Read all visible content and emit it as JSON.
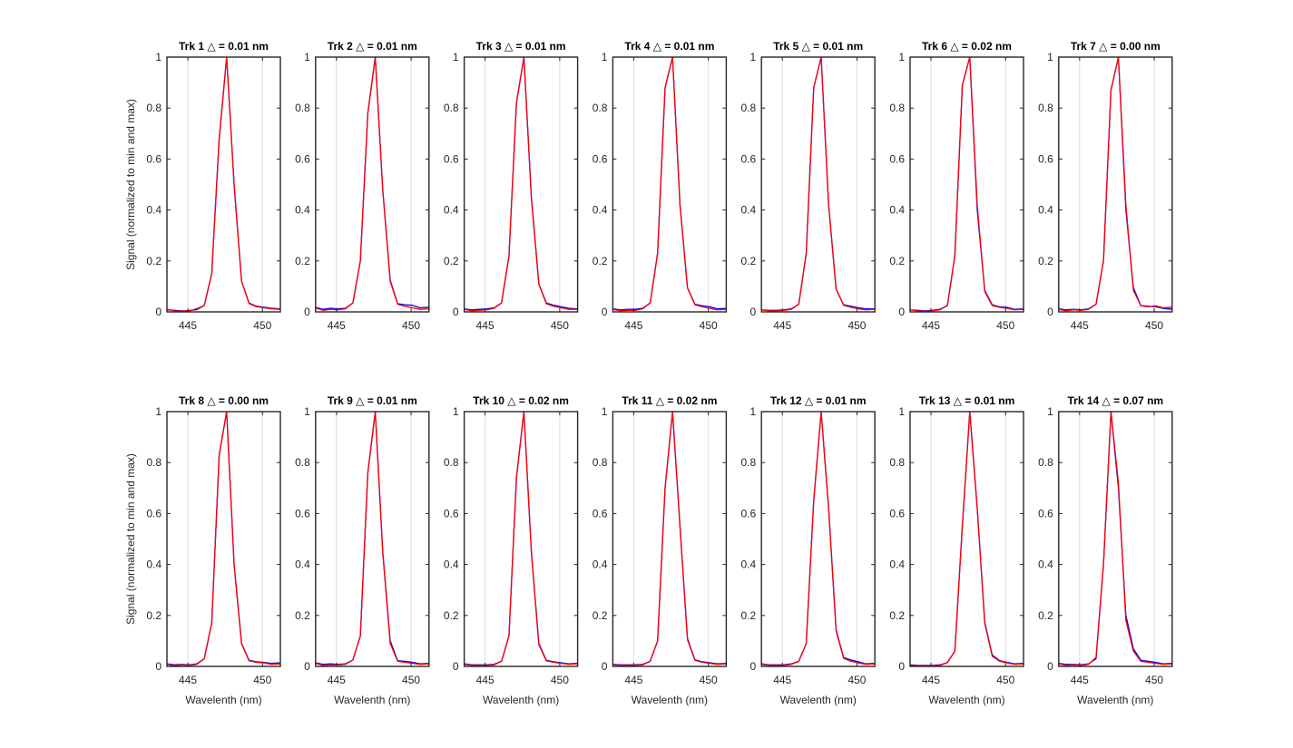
{
  "figure": {
    "ylabel": "Signal (normalized to min and max)",
    "xlabel": "Wavelenth (nm)"
  },
  "chart_data": {
    "type": "line",
    "xlim": [
      443.6,
      451.2
    ],
    "ylim": [
      0,
      1
    ],
    "xticks": [
      445,
      450
    ],
    "yticks": [
      0,
      0.2,
      0.4,
      0.6,
      0.8,
      1
    ],
    "ytick_labels": [
      "0",
      "0.2",
      "0.4",
      "0.6",
      "0.8",
      "1"
    ],
    "grid": true,
    "series_colors": [
      "#0000ff",
      "#ff0000"
    ],
    "x": [
      443.6,
      444.1,
      444.6,
      445.1,
      445.6,
      446.1,
      446.6,
      447.1,
      447.6,
      448.1,
      448.6,
      449.1,
      449.6,
      450.1,
      450.6,
      451.2
    ],
    "panels": [
      {
        "title": "Trk 1 △ = 0.01 nm",
        "ylabel": "Signal (normalized to min and max)",
        "xlabel": "",
        "series": [
          {
            "values": [
              0.008,
              0.006,
              0.004,
              0.004,
              0.012,
              0.025,
              0.15,
              0.68,
              1.0,
              0.5,
              0.12,
              0.035,
              0.022,
              0.018,
              0.014,
              0.012
            ]
          },
          {
            "values": [
              0.01,
              0.004,
              0.002,
              0.006,
              0.008,
              0.025,
              0.15,
              0.68,
              1.0,
              0.5,
              0.12,
              0.033,
              0.02,
              0.016,
              0.012,
              0.01
            ]
          }
        ]
      },
      {
        "title": "Trk 2 △ = 0.01 nm",
        "ylabel": "",
        "xlabel": "",
        "series": [
          {
            "values": [
              0.018,
              0.01,
              0.014,
              0.012,
              0.014,
              0.035,
              0.2,
              0.78,
              1.0,
              0.48,
              0.125,
              0.032,
              0.028,
              0.026,
              0.016,
              0.018
            ]
          },
          {
            "values": [
              0.015,
              0.006,
              0.01,
              0.008,
              0.012,
              0.035,
              0.2,
              0.78,
              1.0,
              0.48,
              0.12,
              0.03,
              0.022,
              0.016,
              0.01,
              0.012
            ]
          }
        ]
      },
      {
        "title": "Trk 3 △ = 0.01 nm",
        "ylabel": "",
        "xlabel": "",
        "series": [
          {
            "values": [
              0.012,
              0.008,
              0.01,
              0.012,
              0.016,
              0.035,
              0.22,
              0.82,
              1.0,
              0.45,
              0.11,
              0.035,
              0.026,
              0.02,
              0.014,
              0.012
            ]
          },
          {
            "values": [
              0.01,
              0.004,
              0.006,
              0.008,
              0.014,
              0.035,
              0.22,
              0.82,
              1.0,
              0.45,
              0.11,
              0.032,
              0.022,
              0.016,
              0.01,
              0.01
            ]
          }
        ]
      },
      {
        "title": "Trk 4 △ = 0.01 nm",
        "ylabel": "",
        "xlabel": "",
        "series": [
          {
            "values": [
              0.012,
              0.008,
              0.01,
              0.01,
              0.014,
              0.035,
              0.23,
              0.88,
              1.0,
              0.42,
              0.095,
              0.03,
              0.024,
              0.02,
              0.012,
              0.014
            ]
          },
          {
            "values": [
              0.01,
              0.004,
              0.006,
              0.006,
              0.012,
              0.035,
              0.23,
              0.88,
              1.0,
              0.42,
              0.095,
              0.028,
              0.02,
              0.014,
              0.008,
              0.01
            ]
          }
        ]
      },
      {
        "title": "Trk 5 △ = 0.01 nm",
        "ylabel": "",
        "xlabel": "",
        "series": [
          {
            "values": [
              0.008,
              0.006,
              0.006,
              0.008,
              0.012,
              0.03,
              0.23,
              0.88,
              1.0,
              0.42,
              0.09,
              0.028,
              0.022,
              0.016,
              0.012,
              0.012
            ]
          },
          {
            "values": [
              0.008,
              0.004,
              0.004,
              0.006,
              0.01,
              0.03,
              0.23,
              0.88,
              1.0,
              0.42,
              0.09,
              0.026,
              0.018,
              0.012,
              0.008,
              0.01
            ]
          }
        ]
      },
      {
        "title": "Trk 6 △ = 0.02 nm",
        "ylabel": "",
        "xlabel": "",
        "series": [
          {
            "values": [
              0.008,
              0.006,
              0.004,
              0.006,
              0.01,
              0.025,
              0.22,
              0.89,
              1.0,
              0.4,
              0.085,
              0.028,
              0.02,
              0.018,
              0.01,
              0.012
            ]
          },
          {
            "values": [
              0.008,
              0.004,
              0.002,
              0.004,
              0.008,
              0.025,
              0.22,
              0.89,
              1.0,
              0.42,
              0.08,
              0.025,
              0.018,
              0.014,
              0.008,
              0.01
            ]
          }
        ]
      },
      {
        "title": "Trk 7 △ = 0.00 nm",
        "ylabel": "",
        "xlabel": "",
        "series": [
          {
            "values": [
              0.012,
              0.008,
              0.01,
              0.008,
              0.012,
              0.03,
              0.2,
              0.87,
              1.0,
              0.4,
              0.095,
              0.025,
              0.022,
              0.02,
              0.014,
              0.01
            ]
          },
          {
            "values": [
              0.01,
              0.004,
              0.008,
              0.006,
              0.01,
              0.03,
              0.2,
              0.87,
              1.0,
              0.42,
              0.085,
              0.024,
              0.02,
              0.024,
              0.016,
              0.018
            ]
          }
        ]
      },
      {
        "title": "Trk 8 △ = 0.00 nm",
        "ylabel": "Signal (normalized to min and max)",
        "xlabel": "Wavelenth (nm)",
        "series": [
          {
            "values": [
              0.01,
              0.006,
              0.008,
              0.006,
              0.01,
              0.03,
              0.17,
              0.83,
              1.0,
              0.4,
              0.09,
              0.024,
              0.018,
              0.016,
              0.012,
              0.014
            ]
          },
          {
            "values": [
              0.008,
              0.002,
              0.006,
              0.004,
              0.008,
              0.03,
              0.17,
              0.83,
              1.0,
              0.4,
              0.088,
              0.022,
              0.016,
              0.014,
              0.008,
              0.01
            ]
          }
        ]
      },
      {
        "title": "Trk 9 △ = 0.01 nm",
        "ylabel": "",
        "xlabel": "Wavelenth (nm)",
        "series": [
          {
            "values": [
              0.014,
              0.008,
              0.01,
              0.008,
              0.01,
              0.025,
              0.12,
              0.76,
              1.0,
              0.45,
              0.1,
              0.022,
              0.02,
              0.016,
              0.01,
              0.012
            ]
          },
          {
            "values": [
              0.012,
              0.004,
              0.006,
              0.006,
              0.008,
              0.025,
              0.12,
              0.76,
              1.0,
              0.45,
              0.09,
              0.02,
              0.016,
              0.012,
              0.008,
              0.01
            ]
          }
        ]
      },
      {
        "title": "Trk 10 △ = 0.02 nm",
        "ylabel": "",
        "xlabel": "Wavelenth (nm)",
        "series": [
          {
            "values": [
              0.01,
              0.006,
              0.006,
              0.006,
              0.008,
              0.02,
              0.12,
              0.74,
              1.0,
              0.45,
              0.09,
              0.024,
              0.018,
              0.014,
              0.01,
              0.012
            ]
          },
          {
            "values": [
              0.008,
              0.004,
              0.004,
              0.004,
              0.006,
              0.02,
              0.12,
              0.74,
              1.0,
              0.45,
              0.085,
              0.022,
              0.016,
              0.012,
              0.008,
              0.01
            ]
          }
        ]
      },
      {
        "title": "Trk 11 △ = 0.02 nm",
        "ylabel": "",
        "xlabel": "Wavelenth (nm)",
        "series": [
          {
            "values": [
              0.008,
              0.006,
              0.006,
              0.006,
              0.008,
              0.02,
              0.1,
              0.7,
              1.0,
              0.55,
              0.11,
              0.026,
              0.018,
              0.014,
              0.01,
              0.012
            ]
          },
          {
            "values": [
              0.006,
              0.004,
              0.004,
              0.004,
              0.006,
              0.02,
              0.1,
              0.7,
              1.0,
              0.55,
              0.105,
              0.024,
              0.016,
              0.012,
              0.008,
              0.01
            ]
          }
        ]
      },
      {
        "title": "Trk 12 △ = 0.01 nm",
        "ylabel": "",
        "xlabel": "Wavelenth (nm)",
        "series": [
          {
            "values": [
              0.01,
              0.006,
              0.006,
              0.006,
              0.01,
              0.02,
              0.09,
              0.65,
              1.0,
              0.62,
              0.145,
              0.035,
              0.025,
              0.018,
              0.01,
              0.012
            ]
          },
          {
            "values": [
              0.008,
              0.004,
              0.004,
              0.004,
              0.008,
              0.02,
              0.09,
              0.65,
              1.0,
              0.62,
              0.14,
              0.032,
              0.02,
              0.014,
              0.008,
              0.01
            ]
          }
        ]
      },
      {
        "title": "Trk 13 △ = 0.01 nm",
        "ylabel": "",
        "xlabel": "Wavelenth (nm)",
        "series": [
          {
            "values": [
              0.006,
              0.004,
              0.004,
              0.004,
              0.006,
              0.015,
              0.06,
              0.55,
              1.0,
              0.62,
              0.175,
              0.045,
              0.022,
              0.016,
              0.01,
              0.012
            ]
          },
          {
            "values": [
              0.004,
              0.002,
              0.002,
              0.002,
              0.004,
              0.015,
              0.06,
              0.55,
              1.0,
              0.62,
              0.17,
              0.04,
              0.02,
              0.014,
              0.008,
              0.01
            ]
          }
        ]
      },
      {
        "title": "Trk 14 △ = 0.07 nm",
        "ylabel": "",
        "xlabel": "Wavelenth (nm)",
        "series": [
          {
            "values": [
              0.012,
              0.008,
              0.008,
              0.006,
              0.01,
              0.03,
              0.4,
              1.0,
              0.7,
              0.2,
              0.07,
              0.024,
              0.02,
              0.016,
              0.01,
              0.012
            ]
          },
          {
            "values": [
              0.01,
              0.004,
              0.006,
              0.004,
              0.008,
              0.035,
              0.4,
              1.0,
              0.72,
              0.18,
              0.06,
              0.02,
              0.016,
              0.012,
              0.008,
              0.01
            ]
          }
        ]
      }
    ]
  }
}
